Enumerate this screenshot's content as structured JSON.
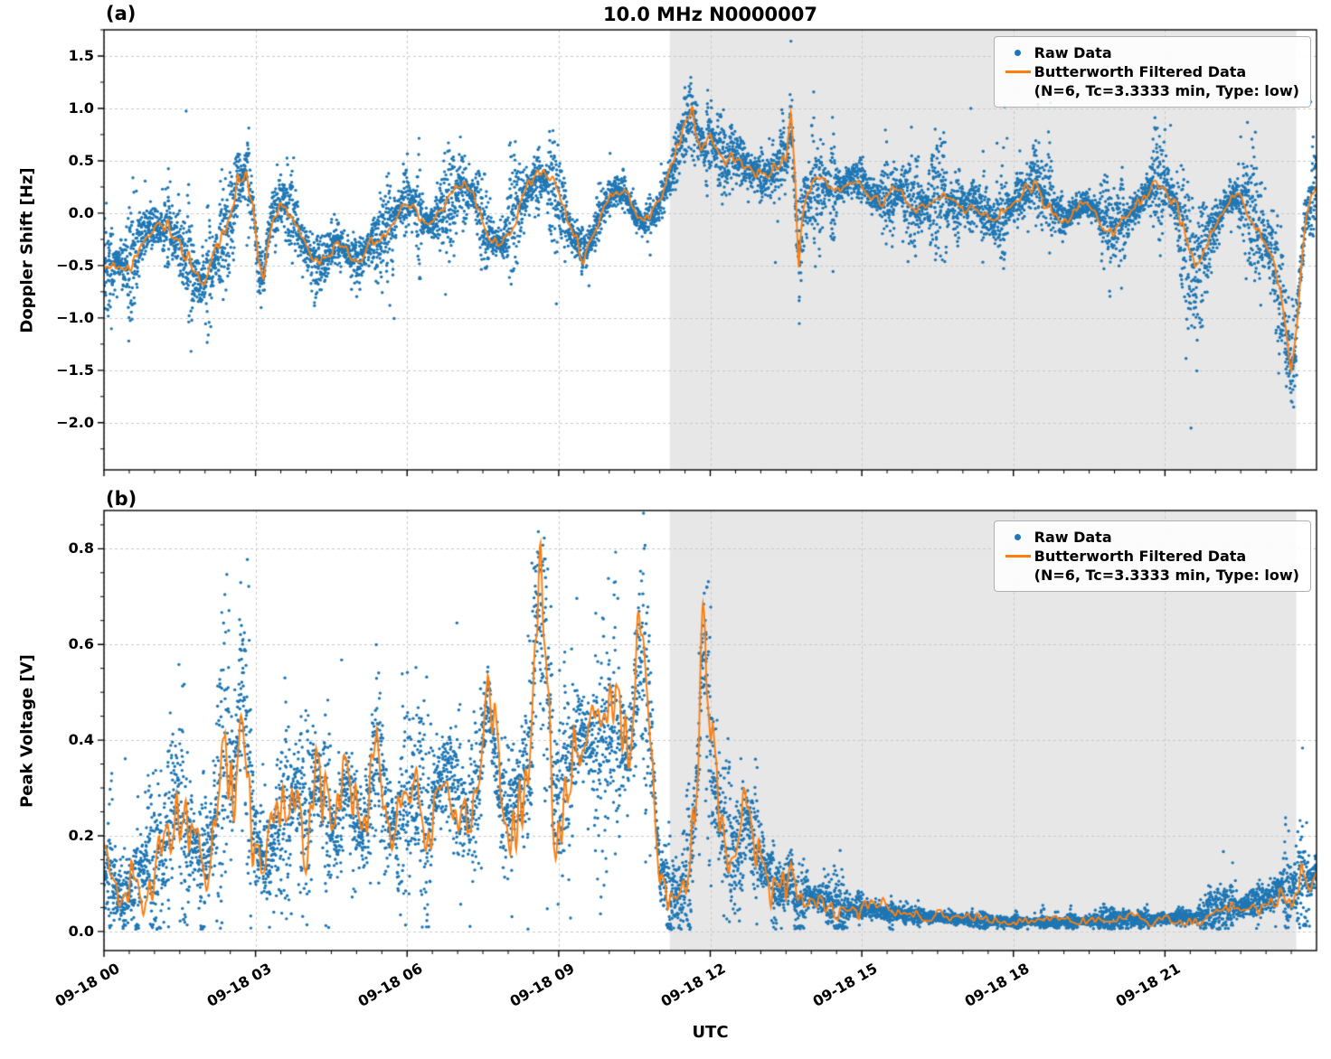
{
  "legend": {
    "raw_label": "Raw Data",
    "filtered_label": "Butterworth Filtered Data",
    "filtered_detail": "(N=6, Tc=3.3333 min, Type: low)"
  },
  "x_axis": {
    "label": "UTC",
    "range_hours": [
      0,
      24
    ],
    "ticks_hours": [
      0,
      3,
      6,
      9,
      12,
      15,
      18,
      21
    ],
    "tick_labels": [
      "09-18 00",
      "09-18 03",
      "09-18 06",
      "09-18 09",
      "09-18 12",
      "09-18 15",
      "09-18 18",
      "09-18 21"
    ],
    "shaded_region_hours": [
      11.2,
      23.6
    ],
    "shade_color": "#e7e7e7"
  },
  "chart_data": [
    {
      "type": "scatter",
      "panel_label": "(a)",
      "title": "10.0 MHz N0000007",
      "ylabel": "Doppler Shift [Hz]",
      "ylim": [
        -2.45,
        1.75
      ],
      "yticks": [
        1.5,
        1.0,
        0.5,
        0.0,
        -0.5,
        -1.0,
        -1.5,
        -2.0
      ],
      "ytick_labels": [
        "1.5",
        "1.0",
        "0.5",
        "0.0",
        "−0.5",
        "−1.0",
        "−1.5",
        "−2.0"
      ],
      "grid": true,
      "legend_position": "upper right",
      "series": [
        {
          "name": "Raw Data",
          "type": "scatter",
          "color": "#1f77b4"
        },
        {
          "name": "Butterworth Filtered Data",
          "type": "line",
          "color": "#ff7f0e",
          "detail": "(N=6, Tc=3.3333 min, Type: low)"
        }
      ],
      "clamp_min": null,
      "filtered": [
        [
          0,
          -0.5
        ],
        [
          0.3,
          -0.45
        ],
        [
          0.5,
          -0.55
        ],
        [
          0.7,
          -0.3
        ],
        [
          0.9,
          -0.12
        ],
        [
          1.1,
          -0.15
        ],
        [
          1.3,
          -0.1
        ],
        [
          1.5,
          -0.3
        ],
        [
          1.7,
          -0.55
        ],
        [
          1.9,
          -0.7
        ],
        [
          2.1,
          -0.55
        ],
        [
          2.3,
          -0.3
        ],
        [
          2.5,
          -0.1
        ],
        [
          2.65,
          0.3
        ],
        [
          2.8,
          0.4
        ],
        [
          2.95,
          0.1
        ],
        [
          3.05,
          -0.45
        ],
        [
          3.15,
          -0.6
        ],
        [
          3.3,
          -0.05
        ],
        [
          3.5,
          0.12
        ],
        [
          3.7,
          0.05
        ],
        [
          3.9,
          -0.25
        ],
        [
          4.1,
          -0.45
        ],
        [
          4.3,
          -0.5
        ],
        [
          4.5,
          -0.35
        ],
        [
          4.7,
          -0.3
        ],
        [
          4.9,
          -0.42
        ],
        [
          5.1,
          -0.4
        ],
        [
          5.3,
          -0.28
        ],
        [
          5.5,
          -0.22
        ],
        [
          5.7,
          -0.1
        ],
        [
          5.9,
          0.12
        ],
        [
          6.1,
          0.1
        ],
        [
          6.3,
          -0.08
        ],
        [
          6.5,
          -0.1
        ],
        [
          6.7,
          0
        ],
        [
          6.9,
          0.15
        ],
        [
          7.1,
          0.25
        ],
        [
          7.3,
          0.18
        ],
        [
          7.5,
          -0.05
        ],
        [
          7.7,
          -0.25
        ],
        [
          7.9,
          -0.28
        ],
        [
          8.1,
          -0.05
        ],
        [
          8.3,
          0.15
        ],
        [
          8.5,
          0.28
        ],
        [
          8.7,
          0.35
        ],
        [
          8.9,
          0.25
        ],
        [
          9.1,
          0
        ],
        [
          9.3,
          -0.25
        ],
        [
          9.5,
          -0.4
        ],
        [
          9.7,
          -0.15
        ],
        [
          9.9,
          0.1
        ],
        [
          10.1,
          0.22
        ],
        [
          10.3,
          0.2
        ],
        [
          10.5,
          0
        ],
        [
          10.7,
          -0.1
        ],
        [
          10.9,
          0
        ],
        [
          11.1,
          0.2
        ],
        [
          11.3,
          0.5
        ],
        [
          11.5,
          0.8
        ],
        [
          11.65,
          1
        ],
        [
          11.75,
          0.7
        ],
        [
          11.9,
          0.6
        ],
        [
          12,
          0.75
        ],
        [
          12.1,
          0.6
        ],
        [
          12.3,
          0.5
        ],
        [
          12.5,
          0.55
        ],
        [
          12.7,
          0.45
        ],
        [
          12.9,
          0.38
        ],
        [
          13.1,
          0.35
        ],
        [
          13.3,
          0.42
        ],
        [
          13.5,
          0.5
        ],
        [
          13.6,
          0.9
        ],
        [
          13.68,
          0.2
        ],
        [
          13.75,
          -0.55
        ],
        [
          13.85,
          0
        ],
        [
          14,
          0.25
        ],
        [
          14.2,
          0.3
        ],
        [
          14.4,
          0.22
        ],
        [
          14.6,
          0.27
        ],
        [
          14.8,
          0.32
        ],
        [
          15,
          0.3
        ],
        [
          15.2,
          0.18
        ],
        [
          15.4,
          0.12
        ],
        [
          15.6,
          0.18
        ],
        [
          15.8,
          0.22
        ],
        [
          16,
          0.1
        ],
        [
          16.2,
          0.05
        ],
        [
          16.4,
          0.12
        ],
        [
          16.6,
          0.18
        ],
        [
          16.8,
          0.08
        ],
        [
          17,
          0.05
        ],
        [
          17.2,
          0.12
        ],
        [
          17.4,
          0.02
        ],
        [
          17.6,
          -0.08
        ],
        [
          17.8,
          -0.02
        ],
        [
          18,
          0.08
        ],
        [
          18.2,
          0.18
        ],
        [
          18.45,
          0.35
        ],
        [
          18.6,
          0.2
        ],
        [
          18.8,
          0.05
        ],
        [
          19,
          -0.05
        ],
        [
          19.2,
          0.02
        ],
        [
          19.4,
          0.1
        ],
        [
          19.6,
          0.05
        ],
        [
          19.8,
          -0.1
        ],
        [
          20,
          -0.15
        ],
        [
          20.2,
          -0.08
        ],
        [
          20.4,
          0.02
        ],
        [
          20.6,
          0.18
        ],
        [
          20.8,
          0.3
        ],
        [
          21,
          0.32
        ],
        [
          21.2,
          0.1
        ],
        [
          21.4,
          -0.25
        ],
        [
          21.6,
          -0.5
        ],
        [
          21.8,
          -0.35
        ],
        [
          22,
          -0.1
        ],
        [
          22.2,
          0.1
        ],
        [
          22.4,
          0.18
        ],
        [
          22.6,
          0.08
        ],
        [
          22.8,
          -0.12
        ],
        [
          23,
          -0.3
        ],
        [
          23.2,
          -0.55
        ],
        [
          23.35,
          -0.95
        ],
        [
          23.5,
          -1.5
        ],
        [
          23.6,
          -1.1
        ],
        [
          23.7,
          -0.45
        ],
        [
          23.8,
          0
        ],
        [
          23.9,
          0.25
        ],
        [
          24,
          0.3
        ]
      ],
      "noise_amp": [
        [
          0,
          0.28
        ],
        [
          1,
          0.3
        ],
        [
          1.5,
          0.38
        ],
        [
          2,
          0.42
        ],
        [
          2.5,
          0.3
        ],
        [
          3,
          0.45
        ],
        [
          3.3,
          0.3
        ],
        [
          4,
          0.3
        ],
        [
          4.5,
          0.28
        ],
        [
          5,
          0.3
        ],
        [
          5.5,
          0.28
        ],
        [
          6,
          0.25
        ],
        [
          6.5,
          0.25
        ],
        [
          7,
          0.25
        ],
        [
          7.5,
          0.3
        ],
        [
          8,
          0.3
        ],
        [
          8.5,
          0.25
        ],
        [
          9,
          0.3
        ],
        [
          9.4,
          0.4
        ],
        [
          9.8,
          0.3
        ],
        [
          10.2,
          0.22
        ],
        [
          10.6,
          0.22
        ],
        [
          11,
          0.25
        ],
        [
          11.5,
          0.3
        ],
        [
          12,
          0.3
        ],
        [
          12.5,
          0.3
        ],
        [
          13,
          0.28
        ],
        [
          13.6,
          0.35
        ],
        [
          14,
          0.3
        ],
        [
          14.5,
          0.28
        ],
        [
          15,
          0.25
        ],
        [
          15.5,
          0.25
        ],
        [
          16,
          0.25
        ],
        [
          16.5,
          0.25
        ],
        [
          17,
          0.25
        ],
        [
          17.5,
          0.25
        ],
        [
          18,
          0.28
        ],
        [
          18.5,
          0.45
        ],
        [
          19,
          0.25
        ],
        [
          19.5,
          0.22
        ],
        [
          20,
          0.25
        ],
        [
          20.5,
          0.28
        ],
        [
          21,
          0.35
        ],
        [
          21.5,
          0.4
        ],
        [
          22,
          0.28
        ],
        [
          22.5,
          0.28
        ],
        [
          23,
          0.3
        ],
        [
          23.5,
          0.4
        ],
        [
          24,
          0.35
        ]
      ],
      "render": {
        "line_wiggle": [
          0.25,
          0.2
        ],
        "y_minor_step": 0.25
      }
    },
    {
      "type": "scatter",
      "panel_label": "(b)",
      "title": "",
      "ylabel": "Peak Voltage [V]",
      "ylim": [
        -0.04,
        0.88
      ],
      "yticks": [
        0.0,
        0.2,
        0.4,
        0.6,
        0.8
      ],
      "ytick_labels": [
        "0.0",
        "0.2",
        "0.4",
        "0.6",
        "0.8"
      ],
      "grid": true,
      "legend_position": "upper right",
      "series": [
        {
          "name": "Raw Data",
          "type": "scatter",
          "color": "#1f77b4"
        },
        {
          "name": "Butterworth Filtered Data",
          "type": "line",
          "color": "#ff7f0e",
          "detail": "(N=6, Tc=3.3333 min, Type: low)"
        }
      ],
      "clamp_min": 0.004,
      "filtered": [
        [
          0,
          0.12
        ],
        [
          0.2,
          0.09
        ],
        [
          0.4,
          0.08
        ],
        [
          0.6,
          0.1
        ],
        [
          0.8,
          0.14
        ],
        [
          1,
          0.12
        ],
        [
          1.2,
          0.2
        ],
        [
          1.4,
          0.3
        ],
        [
          1.6,
          0.24
        ],
        [
          1.8,
          0.18
        ],
        [
          2,
          0.14
        ],
        [
          2.2,
          0.24
        ],
        [
          2.4,
          0.42
        ],
        [
          2.55,
          0.28
        ],
        [
          2.75,
          0.57
        ],
        [
          2.9,
          0.3
        ],
        [
          3,
          0.18
        ],
        [
          3.2,
          0.14
        ],
        [
          3.4,
          0.2
        ],
        [
          3.6,
          0.26
        ],
        [
          3.8,
          0.3
        ],
        [
          4,
          0.2
        ],
        [
          4.2,
          0.35
        ],
        [
          4.4,
          0.24
        ],
        [
          4.6,
          0.2
        ],
        [
          4.8,
          0.3
        ],
        [
          5,
          0.24
        ],
        [
          5.2,
          0.2
        ],
        [
          5.4,
          0.42
        ],
        [
          5.6,
          0.24
        ],
        [
          5.8,
          0.2
        ],
        [
          6,
          0.26
        ],
        [
          6.2,
          0.3
        ],
        [
          6.4,
          0.24
        ],
        [
          6.6,
          0.3
        ],
        [
          6.8,
          0.34
        ],
        [
          7,
          0.28
        ],
        [
          7.2,
          0.24
        ],
        [
          7.4,
          0.3
        ],
        [
          7.6,
          0.5
        ],
        [
          7.8,
          0.3
        ],
        [
          8,
          0.24
        ],
        [
          8.2,
          0.3
        ],
        [
          8.4,
          0.36
        ],
        [
          8.6,
          0.72
        ],
        [
          8.75,
          0.55
        ],
        [
          8.9,
          0.3
        ],
        [
          9,
          0.26
        ],
        [
          9.2,
          0.36
        ],
        [
          9.4,
          0.44
        ],
        [
          9.6,
          0.4
        ],
        [
          9.8,
          0.36
        ],
        [
          10,
          0.44
        ],
        [
          10.2,
          0.4
        ],
        [
          10.4,
          0.36
        ],
        [
          10.6,
          0.58
        ],
        [
          10.8,
          0.44
        ],
        [
          11,
          0.12
        ],
        [
          11.2,
          0.08
        ],
        [
          11.4,
          0.08
        ],
        [
          11.6,
          0.1
        ],
        [
          11.75,
          0.35
        ],
        [
          11.85,
          0.58
        ],
        [
          11.95,
          0.5
        ],
        [
          12.1,
          0.3
        ],
        [
          12.3,
          0.18
        ],
        [
          12.5,
          0.14
        ],
        [
          12.7,
          0.24
        ],
        [
          12.9,
          0.18
        ],
        [
          13.1,
          0.13
        ],
        [
          13.3,
          0.1
        ],
        [
          13.5,
          0.08
        ],
        [
          13.6,
          0.12
        ],
        [
          13.7,
          0.05
        ],
        [
          13.9,
          0.08
        ],
        [
          14.1,
          0.07
        ],
        [
          14.4,
          0.06
        ],
        [
          14.7,
          0.05
        ],
        [
          15,
          0.05
        ],
        [
          15.5,
          0.04
        ],
        [
          16,
          0.035
        ],
        [
          16.5,
          0.03
        ],
        [
          17,
          0.025
        ],
        [
          17.5,
          0.022
        ],
        [
          18,
          0.02
        ],
        [
          18.5,
          0.02
        ],
        [
          19,
          0.02
        ],
        [
          19.5,
          0.022
        ],
        [
          20,
          0.025
        ],
        [
          20.5,
          0.025
        ],
        [
          21,
          0.028
        ],
        [
          21.5,
          0.03
        ],
        [
          22,
          0.04
        ],
        [
          22.5,
          0.05
        ],
        [
          23,
          0.07
        ],
        [
          23.3,
          0.1
        ],
        [
          23.5,
          0.09
        ],
        [
          23.7,
          0.12
        ],
        [
          23.85,
          0.1
        ],
        [
          24,
          0.13
        ]
      ],
      "noise_amp": [
        [
          0,
          0.1
        ],
        [
          0.5,
          0.1
        ],
        [
          1,
          0.12
        ],
        [
          1.5,
          0.14
        ],
        [
          2,
          0.12
        ],
        [
          2.4,
          0.16
        ],
        [
          2.75,
          0.2
        ],
        [
          3,
          0.12
        ],
        [
          3.5,
          0.12
        ],
        [
          4,
          0.13
        ],
        [
          4.5,
          0.12
        ],
        [
          5,
          0.12
        ],
        [
          5.4,
          0.16
        ],
        [
          6,
          0.12
        ],
        [
          6.5,
          0.13
        ],
        [
          7,
          0.12
        ],
        [
          7.6,
          0.15
        ],
        [
          8,
          0.12
        ],
        [
          8.6,
          0.18
        ],
        [
          9,
          0.14
        ],
        [
          9.5,
          0.14
        ],
        [
          10,
          0.15
        ],
        [
          10.6,
          0.18
        ],
        [
          11,
          0.06
        ],
        [
          11.4,
          0.05
        ],
        [
          11.85,
          0.18
        ],
        [
          12.3,
          0.12
        ],
        [
          12.7,
          0.1
        ],
        [
          13,
          0.08
        ],
        [
          13.5,
          0.06
        ],
        [
          14,
          0.05
        ],
        [
          14.5,
          0.04
        ],
        [
          15,
          0.035
        ],
        [
          15.5,
          0.03
        ],
        [
          16,
          0.025
        ],
        [
          16.5,
          0.02
        ],
        [
          17,
          0.018
        ],
        [
          17.5,
          0.015
        ],
        [
          18,
          0.015
        ],
        [
          18.5,
          0.015
        ],
        [
          19,
          0.015
        ],
        [
          19.5,
          0.015
        ],
        [
          20,
          0.015
        ],
        [
          20.5,
          0.015
        ],
        [
          21,
          0.018
        ],
        [
          21.5,
          0.02
        ],
        [
          22,
          0.025
        ],
        [
          22.5,
          0.03
        ],
        [
          23,
          0.045
        ],
        [
          23.5,
          0.055
        ],
        [
          24,
          0.06
        ]
      ],
      "render": {
        "line_wiggle": [
          0.55,
          0.5
        ],
        "y_minor_step": 0.05
      }
    }
  ]
}
